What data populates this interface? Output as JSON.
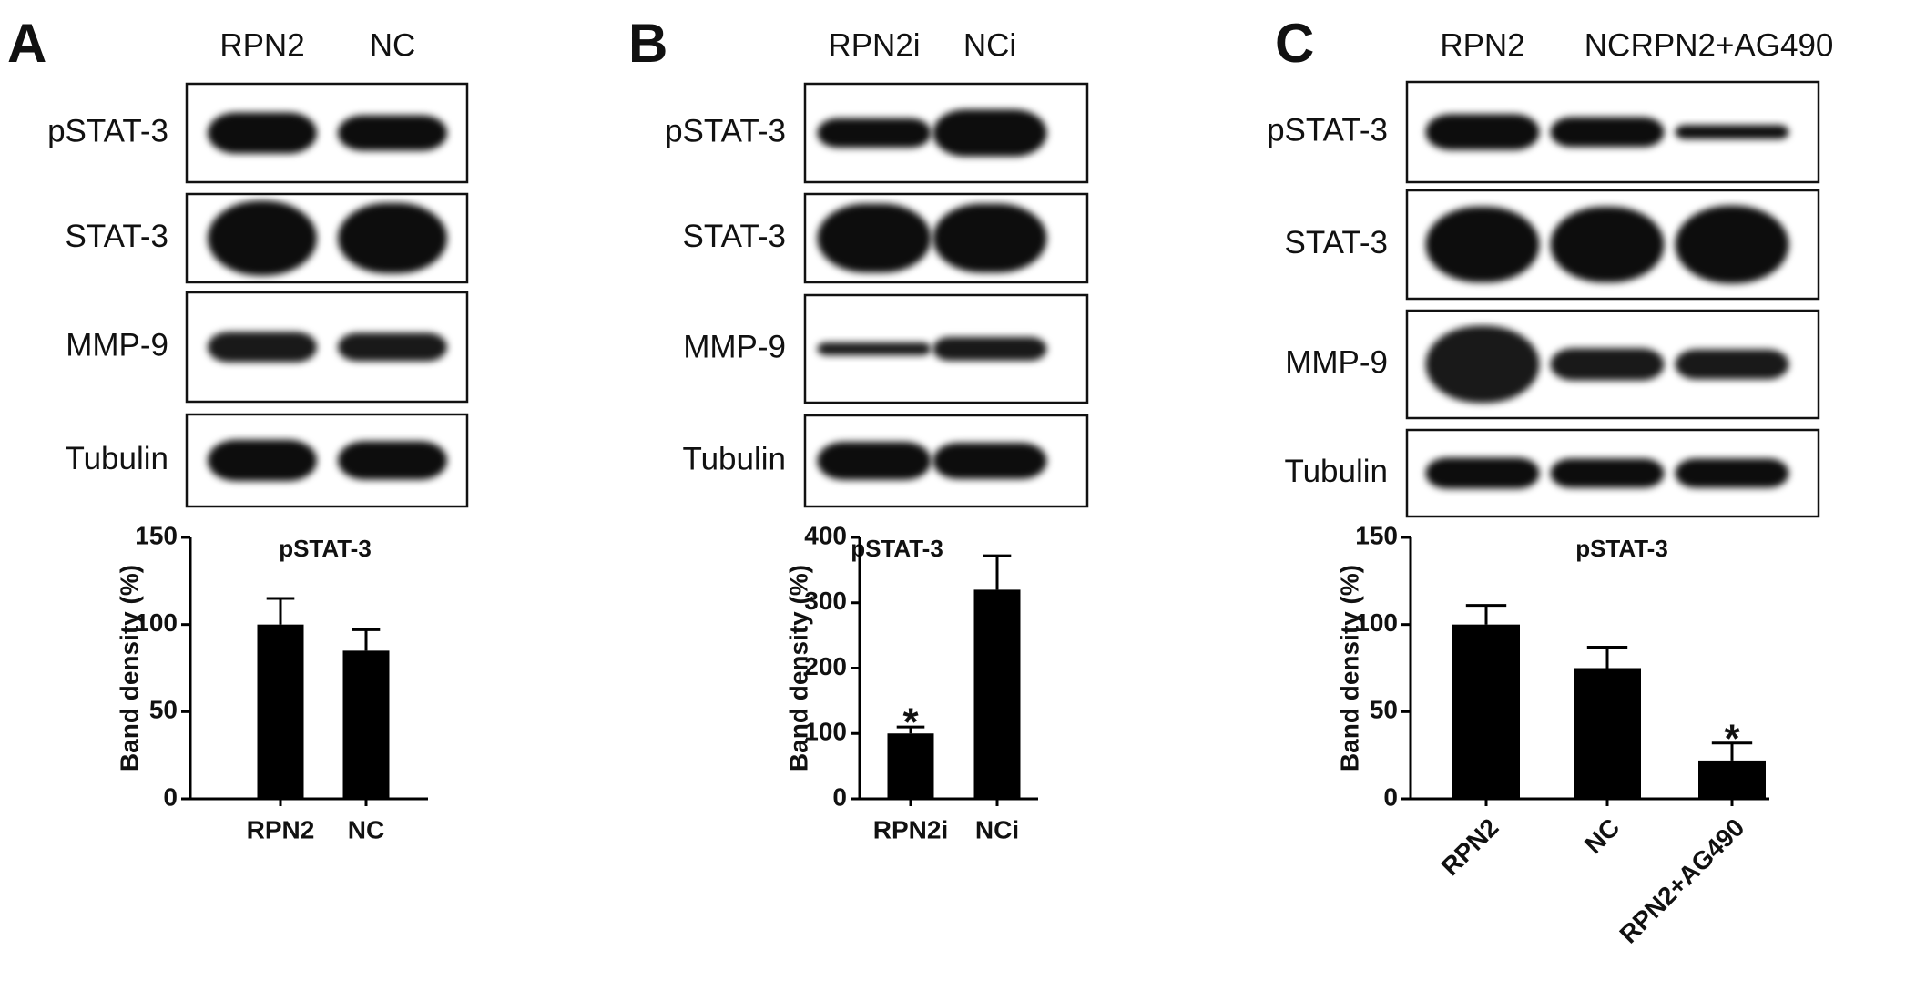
{
  "panels": [
    {
      "letter": "A",
      "lanes": [
        "RPN2",
        "NC"
      ],
      "rows": [
        "pSTAT-3",
        "STAT-3",
        "MMP-9",
        "Tubulin"
      ]
    },
    {
      "letter": "B",
      "lanes": [
        "RPN2i",
        "NCi"
      ],
      "rows": [
        "pSTAT-3",
        "STAT-3",
        "MMP-9",
        "Tubulin"
      ]
    },
    {
      "letter": "C",
      "lanes": [
        "RPN2",
        "NC",
        "RPN2+AG490"
      ],
      "rows": [
        "pSTAT-3",
        "STAT-3",
        "MMP-9",
        "Tubulin"
      ]
    }
  ],
  "chart_data": [
    {
      "type": "bar",
      "title": "pSTAT-3",
      "y_label": "Band density (%)",
      "categories": [
        "RPN2",
        "NC"
      ],
      "values": [
        100,
        85
      ],
      "errors": [
        15,
        12
      ],
      "color": "#000000",
      "ylim": [
        0,
        150
      ],
      "yticks": [
        0,
        50,
        100,
        150
      ]
    },
    {
      "type": "bar",
      "title": "pSTAT-3",
      "y_label": "Band density (%)",
      "categories": [
        "RPN2i",
        "NCi"
      ],
      "values": [
        100,
        320
      ],
      "errors": [
        10,
        52
      ],
      "significance": [
        "*",
        null
      ],
      "color": "#000000",
      "ylim": [
        0,
        400
      ],
      "yticks": [
        0,
        100,
        200,
        300,
        400
      ]
    },
    {
      "type": "bar",
      "title": "pSTAT-3",
      "y_label": "Band density (%)",
      "categories": [
        "RPN2",
        "NC",
        "RPN2+AG490"
      ],
      "values": [
        100,
        75,
        22
      ],
      "errors": [
        11,
        12,
        10
      ],
      "significance": [
        null,
        null,
        "*"
      ],
      "color": "#000000",
      "ylim": [
        0,
        150
      ],
      "yticks": [
        0,
        50,
        100,
        150
      ]
    }
  ]
}
